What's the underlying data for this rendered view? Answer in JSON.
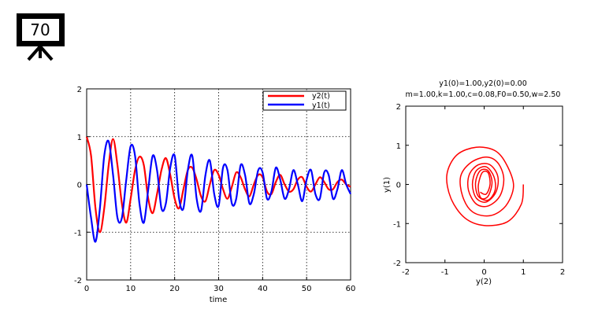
{
  "slide": {
    "number": "70",
    "icon": "presentation-board-icon"
  },
  "chart_data": [
    {
      "type": "line",
      "title": "",
      "xlabel": "time",
      "ylabel": "",
      "xlim": [
        0,
        60
      ],
      "ylim": [
        -2,
        2
      ],
      "xticks": [
        "0",
        "10",
        "20",
        "30",
        "40",
        "50",
        "60"
      ],
      "yticks": [
        "-2",
        "-1",
        "0",
        "1",
        "2"
      ],
      "grid": true,
      "legend": "top-right",
      "series": [
        {
          "name": "y2(t)",
          "color": "#ff0000",
          "x": [
            0,
            1,
            2,
            3,
            4,
            5,
            6,
            7,
            8,
            9,
            10,
            11,
            12,
            13,
            14,
            15,
            16,
            17,
            18,
            19,
            20,
            21,
            22,
            23,
            24,
            25,
            26,
            27,
            28,
            29,
            30,
            31,
            32,
            33,
            34,
            35,
            36,
            37,
            38,
            39,
            40,
            41,
            42,
            43,
            44,
            45,
            46,
            47,
            48,
            49,
            50,
            51,
            52,
            53,
            54,
            55,
            56,
            57,
            58,
            59,
            60
          ],
          "values": [
            1.0,
            0.6,
            -0.5,
            -1.0,
            -0.5,
            0.4,
            0.95,
            0.4,
            -0.4,
            -0.8,
            -0.3,
            0.3,
            0.58,
            0.4,
            -0.3,
            -0.6,
            -0.2,
            0.3,
            0.55,
            0.2,
            -0.3,
            -0.5,
            -0.1,
            0.3,
            0.35,
            0.1,
            -0.25,
            -0.35,
            0.0,
            0.3,
            0.2,
            -0.1,
            -0.3,
            -0.05,
            0.25,
            0.15,
            -0.1,
            -0.25,
            0.0,
            0.2,
            0.15,
            -0.15,
            -0.2,
            0.05,
            0.2,
            0.0,
            -0.15,
            -0.1,
            0.1,
            0.15,
            -0.05,
            -0.15,
            0.0,
            0.15,
            0.05,
            -0.1,
            -0.1,
            0.05,
            0.1,
            0.0,
            -0.05
          ]
        },
        {
          "name": "y1(t)",
          "color": "#0000ff",
          "x": [
            0,
            1,
            2,
            3,
            4,
            5,
            6,
            7,
            8,
            9,
            10,
            11,
            12,
            13,
            14,
            15,
            16,
            17,
            18,
            19,
            20,
            21,
            22,
            23,
            24,
            25,
            26,
            27,
            28,
            29,
            30,
            31,
            32,
            33,
            34,
            35,
            36,
            37,
            38,
            39,
            40,
            41,
            42,
            43,
            44,
            45,
            46,
            47,
            48,
            49,
            50,
            51,
            52,
            53,
            54,
            55,
            56,
            57,
            58,
            59,
            60
          ],
          "values": [
            0.0,
            -0.7,
            -1.2,
            -0.5,
            0.6,
            0.9,
            0.2,
            -0.7,
            -0.7,
            0.1,
            0.8,
            0.6,
            -0.4,
            -0.8,
            -0.1,
            0.6,
            0.3,
            -0.5,
            -0.4,
            0.35,
            0.6,
            -0.3,
            -0.5,
            0.3,
            0.6,
            -0.3,
            -0.55,
            0.2,
            0.5,
            -0.2,
            -0.45,
            0.35,
            0.3,
            -0.4,
            -0.3,
            0.4,
            0.2,
            -0.4,
            -0.2,
            0.3,
            0.25,
            -0.3,
            -0.15,
            0.35,
            0.1,
            -0.3,
            -0.1,
            0.3,
            0.0,
            -0.35,
            0.1,
            0.3,
            -0.2,
            -0.3,
            0.25,
            0.2,
            -0.3,
            -0.1,
            0.3,
            0.0,
            -0.2
          ]
        }
      ]
    },
    {
      "type": "line",
      "title": "y1(0)=1.00,y2(0)=0.00",
      "subtitle": "m=1.00,k=1.00,c=0.08,F0=0.50,w=2.50",
      "xlabel": "y(2)",
      "ylabel": "y(1)",
      "xlim": [
        -2,
        2
      ],
      "ylim": [
        -2,
        2
      ],
      "xticks": [
        "-2",
        "-1",
        "0",
        "1",
        "2"
      ],
      "yticks": [
        "-2",
        "-1",
        "0",
        "1",
        "2"
      ],
      "grid": false,
      "series": [
        {
          "color": "#ff0000",
          "x": [
            1.0,
            0.95,
            0.6,
            0.0,
            -0.5,
            -0.85,
            -0.95,
            -0.7,
            -0.2,
            0.3,
            0.6,
            0.75,
            0.55,
            0.15,
            -0.3,
            -0.55,
            -0.6,
            -0.35,
            0.05,
            0.35,
            0.5,
            0.4,
            0.1,
            -0.2,
            -0.4,
            -0.38,
            -0.15,
            0.15,
            0.35,
            0.3,
            0.05,
            -0.2,
            -0.3,
            -0.2,
            0.05,
            0.25,
            0.28,
            0.1,
            -0.15,
            -0.22,
            -0.1,
            0.1,
            0.2,
            0.1,
            -0.08,
            -0.15,
            -0.05,
            0.1,
            0.15,
            0.05,
            -0.1
          ],
          "y": [
            0.0,
            -0.5,
            -0.95,
            -1.05,
            -0.85,
            -0.35,
            0.25,
            0.75,
            0.95,
            0.85,
            0.45,
            -0.05,
            -0.55,
            -0.8,
            -0.7,
            -0.3,
            0.2,
            0.55,
            0.7,
            0.55,
            0.15,
            -0.3,
            -0.55,
            -0.5,
            -0.15,
            0.25,
            0.5,
            0.5,
            0.2,
            -0.2,
            -0.45,
            -0.35,
            0.0,
            0.35,
            0.45,
            0.2,
            -0.15,
            -0.4,
            -0.3,
            0.05,
            0.35,
            0.35,
            0.05,
            -0.3,
            -0.35,
            -0.05,
            0.3,
            0.3,
            0.0,
            -0.25,
            -0.2
          ]
        }
      ]
    }
  ]
}
